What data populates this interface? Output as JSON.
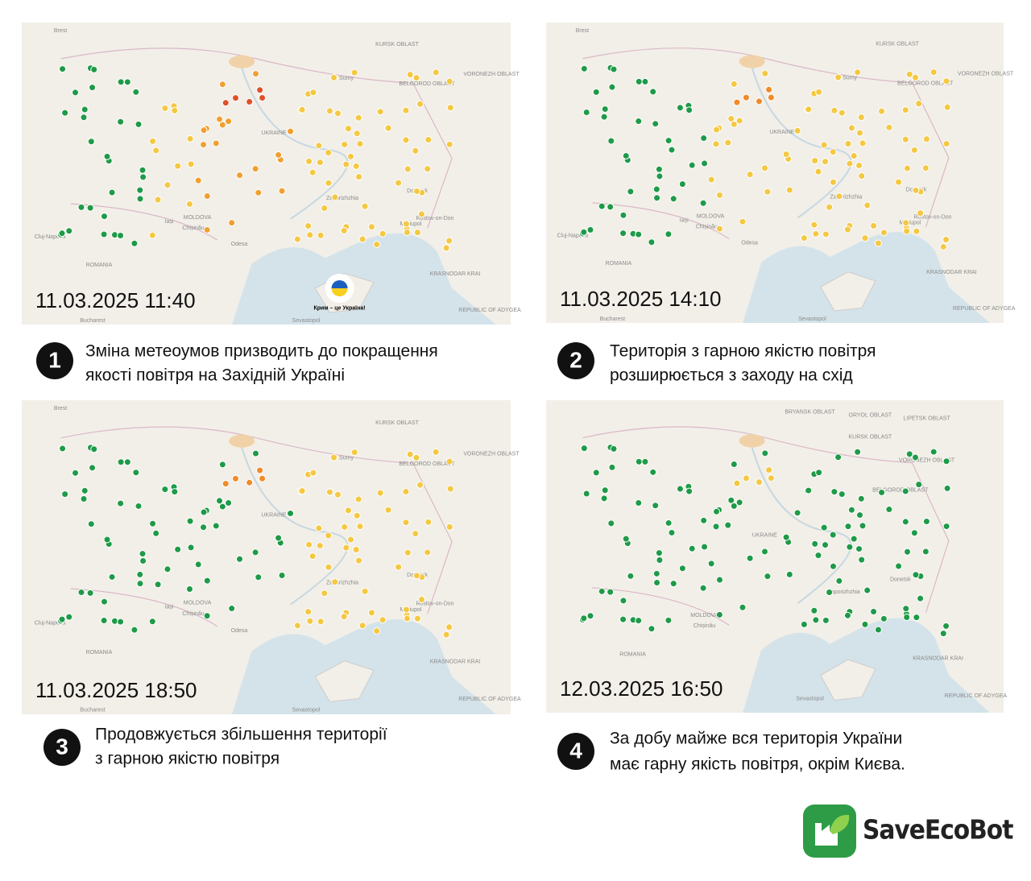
{
  "panels": [
    {
      "number": "1",
      "timestamp": "11.03.2025 11:40",
      "caption": [
        "Зміна метеоумов призводить до покращення",
        "якості повітря на Західній Україні"
      ],
      "map_labels": [
        "Brest",
        "KURSK OBLAST",
        "VORONEZH OBLAST",
        "Sumy",
        "BELGOROD OBLAST",
        "UKRAINE",
        "MOLDOVA",
        "Chișinău",
        "Iași",
        "Cluj-Napoca",
        "ROMANIA",
        "Odesa",
        "Zaporizhzhia",
        "Donetsk",
        "Rostov-on-Don",
        "KRASNODAR KRAI",
        "REPUBLIC OF ADYGEA",
        "Bucharest",
        "Sevastopol",
        "Mariupol"
      ],
      "map_note": "Крим – це Україна!"
    },
    {
      "number": "2",
      "timestamp": "11.03.2025 14:10",
      "caption": [
        "Територія з гарною якістю повітря",
        "розширюється з заходу на схід"
      ],
      "map_labels": [
        "Brest",
        "KURSK OBLAST",
        "VORONEZH OBLAST",
        "Sumy",
        "BELGOROD OBLAST",
        "UKRAINE",
        "MOLDOVA",
        "Chișinău",
        "Iași",
        "Cluj-Napoca",
        "ROMANIA",
        "Odesa",
        "Zaporizhzhia",
        "Donetsk",
        "Rostov-on-Don",
        "KRASNODAR KRAI",
        "REPUBLIC OF ADYGEA",
        "Bucharest",
        "Sevastopol",
        "Mariupol"
      ]
    },
    {
      "number": "3",
      "timestamp": "11.03.2025 18:50",
      "caption": [
        "Продовжується збільшення території",
        "з гарною якістю повітря"
      ],
      "map_labels": [
        "Brest",
        "KURSK OBLAST",
        "VORONEZH OBLAST",
        "Sumy",
        "BELGOROD OBLAST",
        "UKRAINE",
        "MOLDOVA",
        "Chișinău",
        "Iași",
        "Cluj-Napoca",
        "ROMANIA",
        "Odesa",
        "Zaporizhzhia",
        "Donetsk",
        "Rostov-on-Don",
        "KRASNODAR KRAI",
        "REPUBLIC OF ADYGEA",
        "Bucharest",
        "Sevastopol",
        "Mariupol"
      ]
    },
    {
      "number": "4",
      "timestamp": "12.03.2025 16:50",
      "caption": [
        "За добу майже вся територія України",
        "має гарну якість повітря, окрім Києва."
      ],
      "map_labels": [
        "BRYANSK OBLAST",
        "ORYOL OBLAST",
        "LIPETSK OBLAST",
        "KURSK OBLAST",
        "VORONEZH OBLAST",
        "BELGOROD OBLAST",
        "UKRAINE",
        "MOLDOVA",
        "Chișinău",
        "ROMANIA",
        "Zaporizhzhia",
        "Donetsk",
        "KRASNODAR KRAI",
        "REPUBLIC OF ADYGEA",
        "Sevastopol"
      ]
    }
  ],
  "logo": "SaveEcoBot"
}
